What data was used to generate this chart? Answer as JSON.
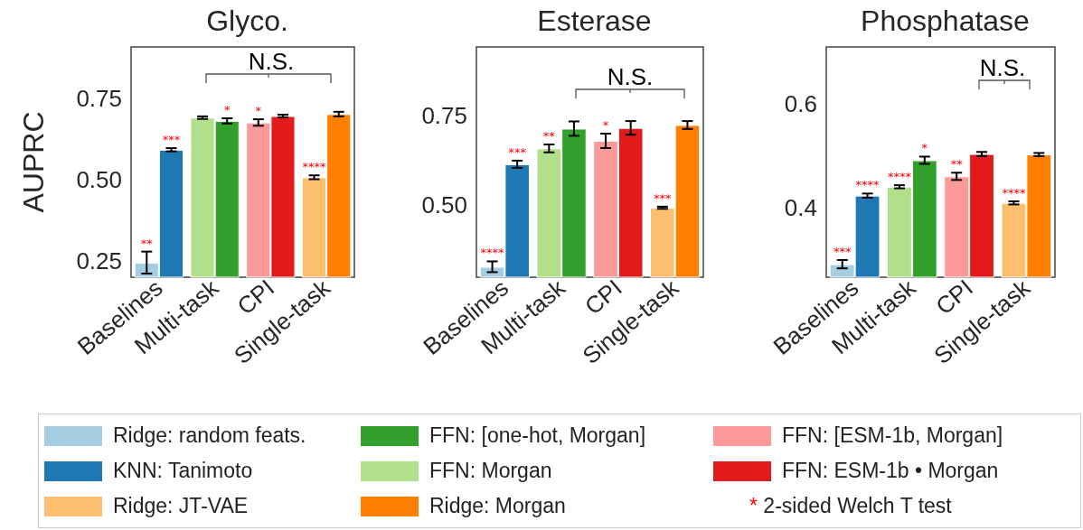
{
  "chart_data": [
    {
      "type": "bar",
      "title": "Glyco.",
      "ylabel": "AUPRC",
      "categories": [
        "Baselines",
        "Multi-task",
        "CPI",
        "Single-task"
      ],
      "ylim": [
        0.2,
        0.91
      ],
      "yticks": [
        0.25,
        {
          "value": 0.5,
          "label": "0.50"
        },
        0.75
      ],
      "grid": false,
      "legend": "bottom",
      "series": [
        {
          "name": "Ridge: random feats.",
          "color": "#a6cee3",
          "values": [
            0.245,
            null,
            null,
            null
          ],
          "errors": [
            0.034,
            null,
            null,
            null
          ],
          "value_labels": [
            "**",
            null,
            null,
            null
          ]
        },
        {
          "name": "KNN: Tanimoto",
          "color": "#1f78b4",
          "values": [
            0.593,
            null,
            null,
            null
          ],
          "errors": [
            0.005,
            null,
            null,
            null
          ],
          "value_labels": [
            "***",
            null,
            null,
            null
          ]
        },
        {
          "name": "FFN: Morgan",
          "color": "#b2df8a",
          "values": [
            null,
            0.692,
            null,
            null
          ],
          "errors": [
            null,
            0.004,
            null,
            null
          ],
          "value_labels": [
            null,
            null,
            null,
            null
          ]
        },
        {
          "name": "FFN: [one-hot, Morgan]",
          "color": "#33a02c",
          "values": [
            null,
            0.682,
            null,
            null
          ],
          "errors": [
            null,
            0.008,
            null,
            null
          ],
          "value_labels": [
            null,
            "*",
            null,
            null
          ]
        },
        {
          "name": "FFN: [ESM-1b, Morgan]",
          "color": "#fb9a99",
          "values": [
            null,
            null,
            0.677,
            null
          ],
          "errors": [
            null,
            null,
            0.01,
            null
          ],
          "value_labels": [
            null,
            null,
            "*",
            null
          ]
        },
        {
          "name": "FFN: ESM-1b • Morgan",
          "color": "#e31a1c",
          "values": [
            null,
            null,
            0.697,
            null
          ],
          "errors": [
            null,
            null,
            0.004,
            null
          ],
          "value_labels": [
            null,
            null,
            null,
            null
          ]
        },
        {
          "name": "Ridge: JT-VAE",
          "color": "#fdbf6f",
          "values": [
            null,
            null,
            null,
            0.508
          ],
          "errors": [
            null,
            null,
            null,
            0.006
          ],
          "value_labels": [
            null,
            null,
            null,
            "****"
          ]
        },
        {
          "name": "Ridge: Morgan",
          "color": "#ff7f00",
          "values": [
            null,
            null,
            null,
            0.703
          ],
          "errors": [
            null,
            null,
            null,
            0.007
          ],
          "value_labels": [
            null,
            null,
            null,
            null
          ]
        }
      ],
      "annotations": [
        "N.S.",
        "* 2-sided Welch T test"
      ]
    },
    {
      "type": "bar",
      "title": "Esterase",
      "categories": [
        "Baselines",
        "Multi-task",
        "CPI",
        "Single-task"
      ],
      "ylim": [
        0.3,
        0.94
      ],
      "yticks": [
        {
          "value": 0.5,
          "label": "0.50"
        },
        0.75
      ],
      "grid": false,
      "series": [
        {
          "color": "#a6cee3",
          "values": [
            0.329,
            null,
            null,
            null
          ],
          "errors": [
            0.015,
            null,
            null,
            null
          ],
          "value_labels": [
            "****",
            null,
            null,
            null
          ]
        },
        {
          "color": "#1f78b4",
          "values": [
            0.614,
            null,
            null,
            null
          ],
          "errors": [
            0.01,
            null,
            null,
            null
          ],
          "value_labels": [
            "***",
            null,
            null,
            null
          ]
        },
        {
          "color": "#b2df8a",
          "values": [
            null,
            0.658,
            null,
            null
          ],
          "errors": [
            null,
            0.011,
            null,
            null
          ],
          "value_labels": [
            null,
            "**",
            null,
            null
          ]
        },
        {
          "color": "#33a02c",
          "values": [
            null,
            0.713,
            null,
            null
          ],
          "errors": [
            null,
            0.02,
            null,
            null
          ],
          "value_labels": [
            null,
            null,
            null,
            null
          ]
        },
        {
          "color": "#fb9a99",
          "values": [
            null,
            null,
            0.679,
            null
          ],
          "errors": [
            null,
            null,
            0.02,
            null
          ],
          "value_labels": [
            null,
            null,
            "*",
            null
          ]
        },
        {
          "color": "#e31a1c",
          "values": [
            null,
            null,
            0.715,
            null
          ],
          "errors": [
            null,
            null,
            0.019,
            null
          ],
          "value_labels": [
            null,
            null,
            null,
            null
          ]
        },
        {
          "color": "#fdbf6f",
          "values": [
            null,
            null,
            null,
            0.493
          ],
          "errors": [
            null,
            null,
            null,
            0.003
          ],
          "value_labels": [
            null,
            null,
            null,
            "***"
          ]
        },
        {
          "color": "#ff7f00",
          "values": [
            null,
            null,
            null,
            0.723
          ],
          "errors": [
            null,
            null,
            null,
            0.011
          ],
          "value_labels": [
            null,
            null,
            null,
            null
          ]
        }
      ],
      "annotations": [
        "N.S."
      ]
    },
    {
      "type": "bar",
      "title": "Phosphatase",
      "categories": [
        "Baselines",
        "Multi-task",
        "CPI",
        "Single-task"
      ],
      "ylim": [
        0.267,
        0.71
      ],
      "yticks": [
        0.4,
        0.6
      ],
      "grid": false,
      "series": [
        {
          "color": "#a6cee3",
          "values": [
            0.292,
            null,
            null,
            null
          ],
          "errors": [
            0.008,
            null,
            null,
            null
          ],
          "value_labels": [
            "***",
            null,
            null,
            null
          ]
        },
        {
          "color": "#1f78b4",
          "values": [
            0.424,
            null,
            null,
            null
          ],
          "errors": [
            0.004,
            null,
            null,
            null
          ],
          "value_labels": [
            "****",
            null,
            null,
            null
          ]
        },
        {
          "color": "#b2df8a",
          "values": [
            null,
            0.441,
            null,
            null
          ],
          "errors": [
            null,
            0.003,
            null,
            null
          ],
          "value_labels": [
            null,
            "****",
            null,
            null
          ]
        },
        {
          "color": "#33a02c",
          "values": [
            null,
            0.492,
            null,
            null
          ],
          "errors": [
            null,
            0.007,
            null,
            null
          ],
          "value_labels": [
            null,
            "*",
            null,
            null
          ]
        },
        {
          "color": "#fb9a99",
          "values": [
            null,
            null,
            0.461,
            null
          ],
          "errors": [
            null,
            null,
            0.007,
            null
          ],
          "value_labels": [
            null,
            null,
            "**",
            null
          ]
        },
        {
          "color": "#e31a1c",
          "values": [
            null,
            null,
            0.504,
            null
          ],
          "errors": [
            null,
            null,
            0.004,
            null
          ],
          "value_labels": [
            null,
            null,
            null,
            null
          ]
        },
        {
          "color": "#fdbf6f",
          "values": [
            null,
            null,
            null,
            0.41
          ],
          "errors": [
            null,
            null,
            null,
            0.003
          ],
          "value_labels": [
            null,
            null,
            null,
            "****"
          ]
        },
        {
          "color": "#ff7f00",
          "values": [
            null,
            null,
            null,
            0.503
          ],
          "errors": [
            null,
            null,
            null,
            0.003
          ],
          "value_labels": [
            null,
            null,
            null,
            null
          ]
        }
      ],
      "annotations": [
        "N.S."
      ]
    }
  ]
}
